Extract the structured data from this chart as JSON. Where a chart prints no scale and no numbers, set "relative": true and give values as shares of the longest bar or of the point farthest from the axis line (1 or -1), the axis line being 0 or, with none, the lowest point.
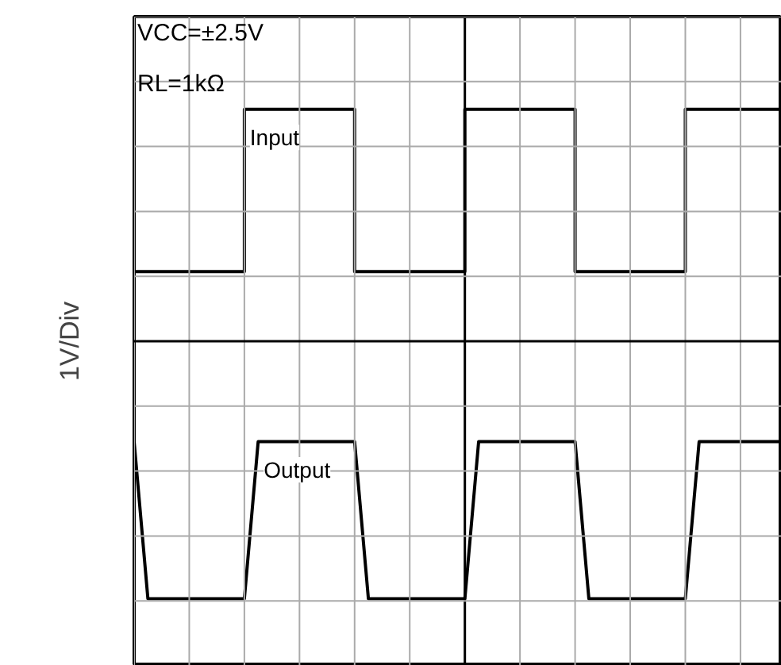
{
  "chart_data": {
    "type": "line",
    "relative": true,
    "ylabel": "1V/Div",
    "grid": true,
    "annotations": [
      "VCC=±2.5V",
      "RL=1kΩ"
    ],
    "categories": [
      null,
      null,
      null,
      null,
      null,
      null,
      null,
      null,
      null,
      null,
      null,
      null,
      null,
      null,
      null,
      null,
      null,
      null,
      null,
      null,
      null,
      null,
      null,
      null,
      null,
      null,
      null,
      null,
      null,
      null,
      null,
      null,
      null,
      null,
      null,
      null,
      null,
      null,
      null,
      null,
      null,
      null,
      null,
      null,
      null,
      null,
      null,
      null
    ],
    "series": [
      {
        "name": "Input",
        "type": "step",
        "color": "#000000",
        "values": [
          0.27,
          0.27,
          0.27,
          0.27,
          0.27,
          0.27,
          0.27,
          0.27,
          0.9,
          0.9,
          0.9,
          0.9,
          0.9,
          0.9,
          0.9,
          0.9,
          0.27,
          0.27,
          0.27,
          0.27,
          0.27,
          0.27,
          0.27,
          0.27,
          0.9,
          0.9,
          0.9,
          0.9,
          0.9,
          0.9,
          0.9,
          0.9,
          0.27,
          0.27,
          0.27,
          0.27,
          0.27,
          0.27,
          0.27,
          0.27,
          0.9,
          0.9,
          0.9,
          0.9,
          0.9,
          0.9,
          0.9,
          0.9
        ]
      },
      {
        "name": "Output",
        "color": "#000000",
        "values": [
          -0.39,
          -1,
          -1,
          -1,
          -1,
          -1,
          -1,
          -1,
          -1,
          -0.39,
          -0.39,
          -0.39,
          -0.39,
          -0.39,
          -0.39,
          -0.39,
          -0.39,
          -1,
          -1,
          -1,
          -1,
          -1,
          -1,
          -1,
          -1,
          -0.39,
          -0.39,
          -0.39,
          -0.39,
          -0.39,
          -0.39,
          -0.39,
          -0.39,
          -1,
          -1,
          -1,
          -1,
          -1,
          -1,
          -1,
          -1,
          -0.39,
          -0.39,
          -0.39,
          -0.39,
          -0.39,
          -0.39,
          -0.39
        ]
      }
    ]
  }
}
